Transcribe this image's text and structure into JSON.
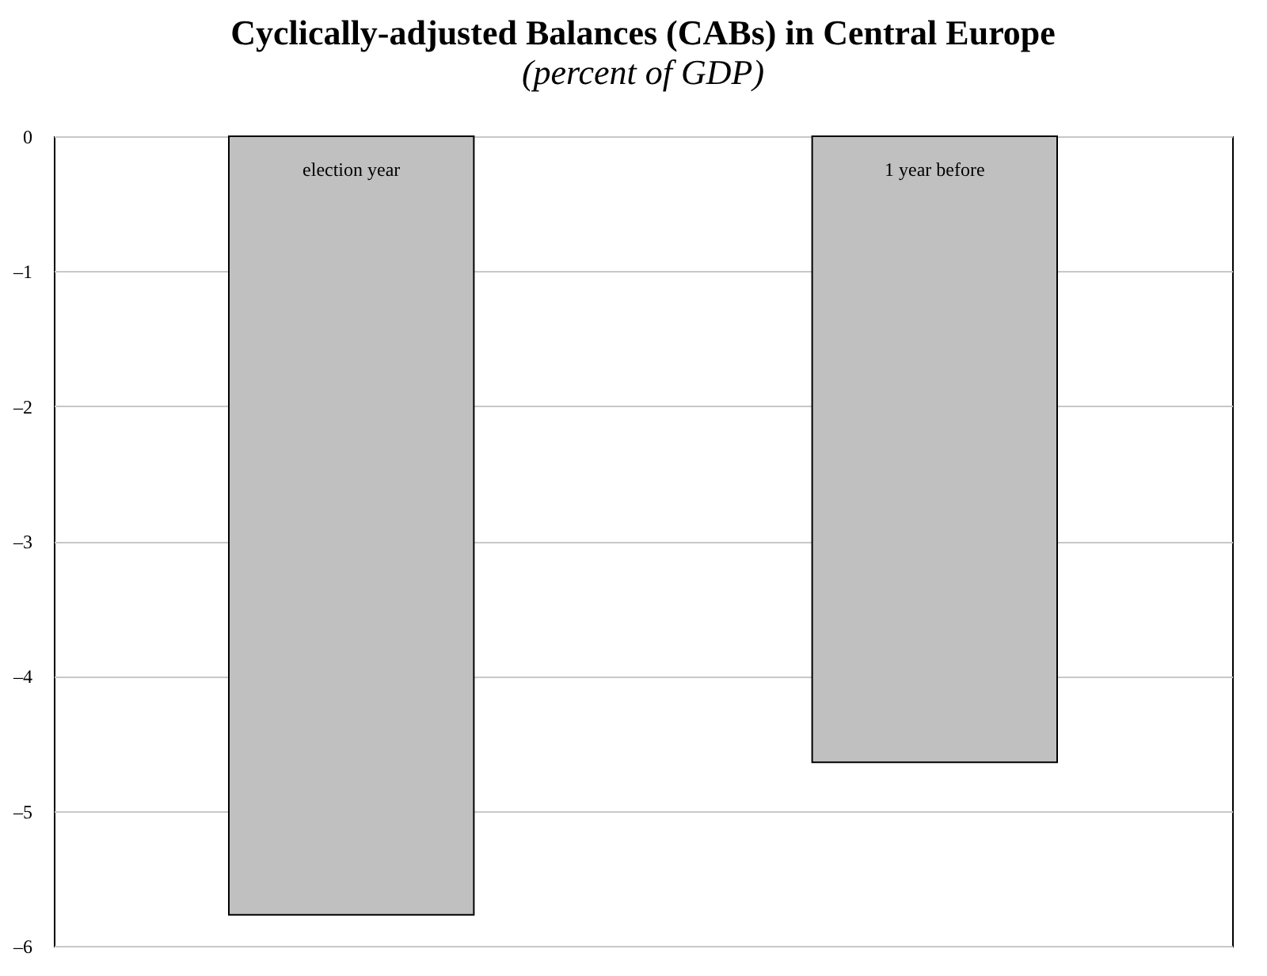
{
  "chart_data": {
    "type": "bar",
    "title": "Cyclically-adjusted Balances (CABs) in Central Europe",
    "subtitle": "(percent of GDP)",
    "categories": [
      "election year",
      "1 year before"
    ],
    "values": [
      -5.77,
      -4.64
    ],
    "color": "#c0c0c0",
    "ylim": [
      -6,
      0
    ],
    "yticks": [
      {
        "value": -6,
        "label": "–6"
      },
      {
        "value": -5,
        "label": "–5"
      },
      {
        "value": -4,
        "label": "–4"
      },
      {
        "value": -3,
        "label": "–3"
      },
      {
        "value": -2,
        "label": "–2"
      },
      {
        "value": -1,
        "label": "–1"
      },
      0
    ],
    "grid": "y"
  }
}
